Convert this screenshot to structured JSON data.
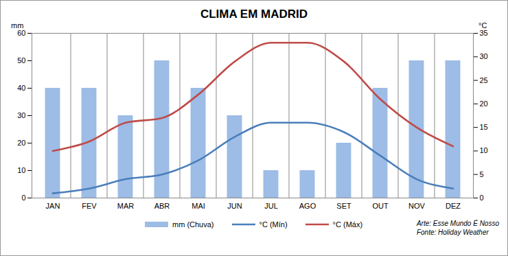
{
  "chart_data": {
    "type": "bar",
    "title": "CLIMA EM MADRID",
    "categories": [
      "JAN",
      "FEV",
      "MAR",
      "ABR",
      "MAI",
      "JUN",
      "JUL",
      "AGO",
      "SET",
      "OUT",
      "NOV",
      "DEZ"
    ],
    "series": [
      {
        "name": "mm (Chuva)",
        "type": "bar",
        "color": "#9dbce6",
        "values": [
          40,
          40,
          30,
          50,
          40,
          30,
          10,
          10,
          20,
          40,
          50,
          50
        ]
      },
      {
        "name": "°C (Mín)",
        "type": "line",
        "axis": "y2",
        "color": "#4a7ebb",
        "values": [
          1,
          2,
          4,
          5,
          8,
          13,
          16,
          16,
          14,
          9,
          4,
          2
        ]
      },
      {
        "name": "°C (Máx)",
        "type": "line",
        "axis": "y2",
        "color": "#be4b48",
        "values": [
          10,
          12,
          16,
          17,
          22,
          29,
          33,
          33,
          29,
          21,
          15,
          11
        ]
      }
    ],
    "ylabel": "mm",
    "y2label": "°C",
    "ylim": [
      0,
      60
    ],
    "yticks": [
      0,
      10,
      20,
      30,
      40,
      50,
      60
    ],
    "y2lim": [
      0,
      35
    ],
    "y2ticks": [
      0,
      5,
      10,
      15,
      20,
      25,
      30,
      35
    ],
    "grid": true,
    "legend": "bottom",
    "annotations": [
      "Arte: Esse Mundo É Nosso",
      "Fonte: Holiday Weather"
    ]
  }
}
